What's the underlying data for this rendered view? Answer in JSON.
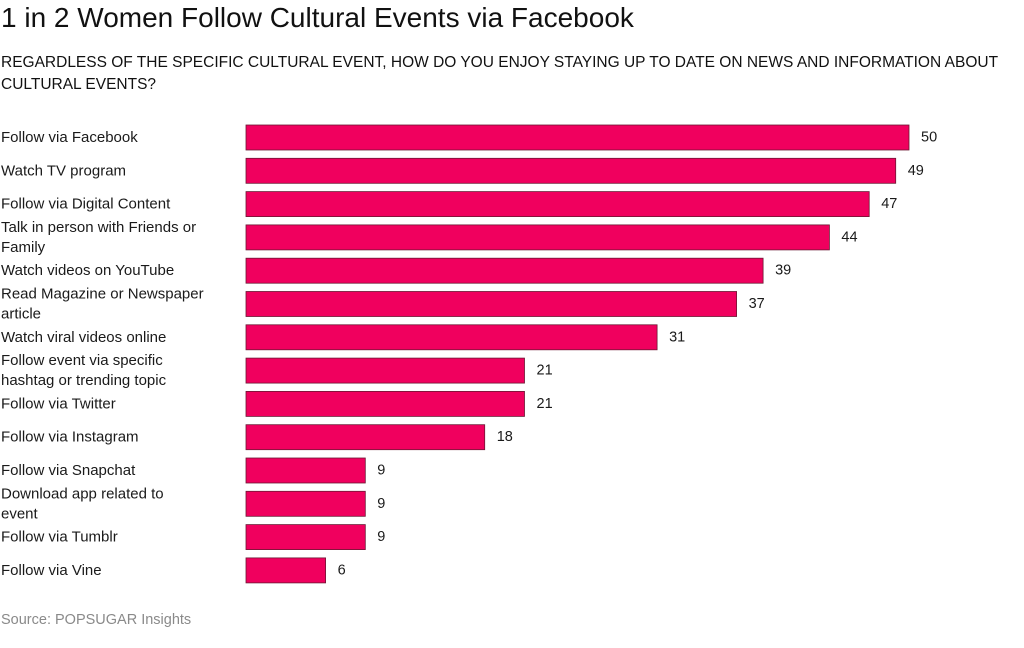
{
  "title": "1 in 2 Women Follow Cultural Events via Facebook",
  "subtitle": "REGARDLESS OF THE SPECIFIC CULTURAL EVENT, HOW DO YOU ENJOY STAYING UP TO DATE ON NEWS AND INFORMATION ABOUT CULTURAL EVENTS?",
  "source": "Source: POPSUGAR Insights",
  "colors": {
    "bar": "#f0005e"
  },
  "chart_data": {
    "type": "bar",
    "orientation": "horizontal",
    "categories": [
      [
        "Follow via Facebook"
      ],
      [
        "Watch TV program"
      ],
      [
        "Follow via Digital Content"
      ],
      [
        "Talk in person with Friends or",
        "Family"
      ],
      [
        "Watch videos on YouTube"
      ],
      [
        "Read Magazine or Newspaper",
        "article"
      ],
      [
        "Watch viral videos online"
      ],
      [
        "Follow event via specific",
        "hashtag or trending topic"
      ],
      [
        "Follow via Twitter"
      ],
      [
        "Follow via Instagram"
      ],
      [
        "Follow via Snapchat"
      ],
      [
        "Download app related to",
        "event"
      ],
      [
        "Follow via Tumblr"
      ],
      [
        "Follow via Vine"
      ]
    ],
    "values": [
      50,
      49,
      47,
      44,
      39,
      37,
      31,
      21,
      21,
      18,
      9,
      9,
      9,
      6
    ],
    "xlim": [
      0,
      50
    ],
    "grid": false,
    "legend": "none"
  }
}
